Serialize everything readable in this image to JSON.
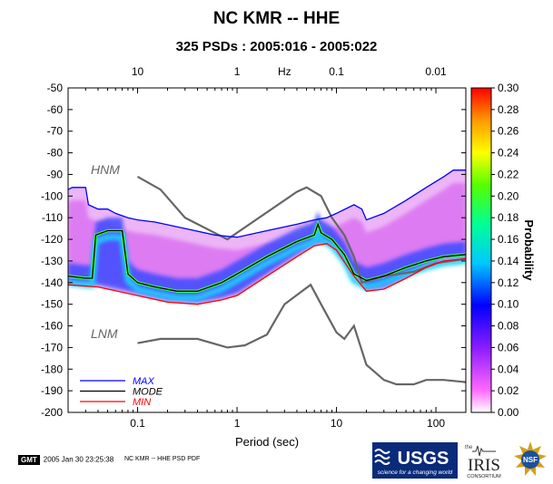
{
  "title": "NC KMR -- HHE",
  "subtitle": "325 PSDs : 2005:016 - 2005:022",
  "footer": {
    "gmt_label": "GMT",
    "timestamp": "2005 Jan 30 23:25:38",
    "plot_name": "NC KMR -- HHE PSD PDF"
  },
  "logos": {
    "usgs_text": "USGS",
    "usgs_tagline": "science for a changing world",
    "iris_text": "IRIS",
    "iris_small": "the",
    "iris_consortium": "CONSORTIUM",
    "nsf_text": "NSF"
  },
  "chart_data": {
    "type": "heatmap",
    "xlabel": "Period (sec)",
    "top_axis_label": "Hz",
    "colorbar_label": "Probability",
    "xscale": "log",
    "xlim": [
      0.02,
      200
    ],
    "ylim": [
      -200,
      -50
    ],
    "x_ticks": [
      {
        "value": 0.1,
        "label": "0.1"
      },
      {
        "value": 1,
        "label": "1"
      },
      {
        "value": 10,
        "label": "10"
      },
      {
        "value": 100,
        "label": "100"
      }
    ],
    "top_ticks": [
      {
        "value": 0.1,
        "label": "10"
      },
      {
        "value": 1,
        "label": "1"
      },
      {
        "value": 10,
        "label": "0.1"
      },
      {
        "value": 100,
        "label": "0.01"
      }
    ],
    "y_ticks": [
      -50,
      -60,
      -70,
      -80,
      -90,
      -100,
      -110,
      -120,
      -130,
      -140,
      -150,
      -160,
      -170,
      -180,
      -190,
      -200
    ],
    "colorbar_ticks": [
      "0.30",
      "0.28",
      "0.26",
      "0.24",
      "0.22",
      "0.20",
      "0.18",
      "0.16",
      "0.14",
      "0.12",
      "0.10",
      "0.08",
      "0.06",
      "0.04",
      "0.02",
      "0.00"
    ],
    "colorbar_range": [
      0,
      0.3
    ],
    "colors": {
      "max": "#0000ff",
      "mode": "#000000",
      "min": "#ff0000",
      "noise_models": "#666666"
    },
    "noise_model_labels": {
      "high": "HNM",
      "low": "LNM"
    },
    "legend": [
      {
        "key": "max",
        "label": "MAX",
        "color": "#0000ff"
      },
      {
        "key": "mode",
        "label": "MODE",
        "color": "#000000"
      },
      {
        "key": "min",
        "label": "MIN",
        "color": "#ff0000"
      }
    ],
    "legend_position": "bottom-left",
    "series": {
      "max": [
        [
          0.02,
          -97
        ],
        [
          0.022,
          -96
        ],
        [
          0.03,
          -96
        ],
        [
          0.032,
          -104
        ],
        [
          0.04,
          -106
        ],
        [
          0.05,
          -106
        ],
        [
          0.06,
          -108
        ],
        [
          0.08,
          -110
        ],
        [
          0.1,
          -111
        ],
        [
          0.15,
          -112
        ],
        [
          0.3,
          -115
        ],
        [
          0.6,
          -118
        ],
        [
          1,
          -119
        ],
        [
          2,
          -116
        ],
        [
          4,
          -113
        ],
        [
          6,
          -111
        ],
        [
          8,
          -110
        ],
        [
          10,
          -108
        ],
        [
          15,
          -104
        ],
        [
          18,
          -106
        ],
        [
          20,
          -111
        ],
        [
          30,
          -108
        ],
        [
          50,
          -102
        ],
        [
          80,
          -96
        ],
        [
          120,
          -91
        ],
        [
          150,
          -88
        ],
        [
          200,
          -88
        ]
      ],
      "mode": [
        [
          0.02,
          -137
        ],
        [
          0.03,
          -138
        ],
        [
          0.035,
          -138
        ],
        [
          0.038,
          -118
        ],
        [
          0.05,
          -116
        ],
        [
          0.07,
          -116
        ],
        [
          0.08,
          -136
        ],
        [
          0.1,
          -140
        ],
        [
          0.15,
          -142
        ],
        [
          0.25,
          -144
        ],
        [
          0.4,
          -144
        ],
        [
          0.7,
          -140
        ],
        [
          1,
          -136
        ],
        [
          2,
          -128
        ],
        [
          4,
          -121
        ],
        [
          6,
          -118
        ],
        [
          6.5,
          -113
        ],
        [
          7,
          -117
        ],
        [
          9,
          -120
        ],
        [
          12,
          -127
        ],
        [
          15,
          -136
        ],
        [
          20,
          -139
        ],
        [
          30,
          -137
        ],
        [
          50,
          -133
        ],
        [
          80,
          -130
        ],
        [
          120,
          -128
        ],
        [
          200,
          -127
        ]
      ],
      "min": [
        [
          0.02,
          -141
        ],
        [
          0.04,
          -142
        ],
        [
          0.1,
          -146
        ],
        [
          0.2,
          -149
        ],
        [
          0.4,
          -150
        ],
        [
          0.7,
          -148
        ],
        [
          1,
          -146
        ],
        [
          2,
          -137
        ],
        [
          4,
          -128
        ],
        [
          6,
          -123
        ],
        [
          8,
          -122
        ],
        [
          10,
          -125
        ],
        [
          15,
          -137
        ],
        [
          20,
          -144
        ],
        [
          30,
          -143
        ],
        [
          50,
          -138
        ],
        [
          80,
          -133
        ],
        [
          120,
          -130
        ],
        [
          200,
          -129
        ]
      ],
      "hnm": [
        [
          0.1,
          -91
        ],
        [
          0.17,
          -97
        ],
        [
          0.3,
          -110
        ],
        [
          0.8,
          -120
        ],
        [
          4,
          -98
        ],
        [
          5,
          -96
        ],
        [
          7,
          -100
        ],
        [
          9,
          -110
        ],
        [
          12,
          -118
        ],
        [
          15,
          -128
        ],
        [
          18,
          -140
        ],
        [
          30,
          -137
        ],
        [
          60,
          -135
        ],
        [
          100,
          -131
        ],
        [
          200,
          -129
        ]
      ],
      "lnm": [
        [
          0.1,
          -168
        ],
        [
          0.17,
          -166
        ],
        [
          0.4,
          -166
        ],
        [
          0.8,
          -170
        ],
        [
          1.2,
          -169
        ],
        [
          2,
          -164
        ],
        [
          3,
          -150
        ],
        [
          4.5,
          -144
        ],
        [
          5.5,
          -141
        ],
        [
          7,
          -150
        ],
        [
          10,
          -163
        ],
        [
          12,
          -166
        ],
        [
          15,
          -160
        ],
        [
          20,
          -178
        ],
        [
          30,
          -185
        ],
        [
          40,
          -187
        ],
        [
          60,
          -187
        ],
        [
          80,
          -185
        ],
        [
          120,
          -185
        ],
        [
          200,
          -186
        ]
      ]
    }
  }
}
